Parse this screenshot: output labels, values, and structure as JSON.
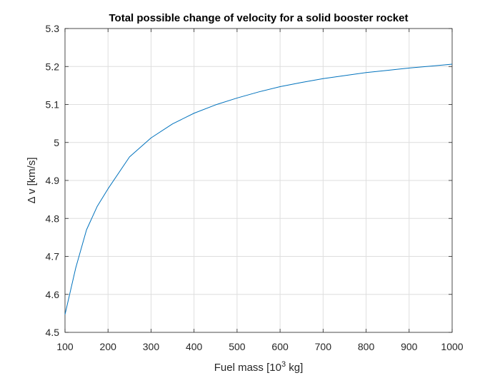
{
  "chart_data": {
    "type": "line",
    "title": "Total possible change of velocity for a solid booster rocket",
    "xlabel": {
      "main": "Fuel mass [10",
      "sup": "3",
      "tail": " kg]"
    },
    "ylabel": "Δ v [km/s]",
    "xlim": [
      100,
      1000
    ],
    "ylim": [
      4.5,
      5.3
    ],
    "xticks": [
      100,
      200,
      300,
      400,
      500,
      600,
      700,
      800,
      900,
      1000
    ],
    "xtick_labels": [
      "100",
      "200",
      "300",
      "400",
      "500",
      "600",
      "700",
      "800",
      "900",
      "1000"
    ],
    "yticks": [
      4.5,
      4.6,
      4.7,
      4.8,
      4.9,
      5.0,
      5.1,
      5.2,
      5.3
    ],
    "ytick_labels": [
      "4.5",
      "4.6",
      "4.7",
      "4.8",
      "4.9",
      "5",
      "5.1",
      "5.2",
      "5.3"
    ],
    "grid": true,
    "series": [
      {
        "color": "#0072bd",
        "x": [
          100,
          125,
          150,
          175,
          200,
          250,
          300,
          350,
          400,
          450,
          500,
          550,
          600,
          650,
          700,
          750,
          800,
          850,
          900,
          950,
          1000
        ],
        "y": [
          4.547,
          4.67,
          4.77,
          4.832,
          4.878,
          4.962,
          5.012,
          5.049,
          5.077,
          5.099,
          5.117,
          5.133,
          5.147,
          5.158,
          5.168,
          5.176,
          5.184,
          5.19,
          5.196,
          5.201,
          5.206
        ]
      }
    ]
  }
}
